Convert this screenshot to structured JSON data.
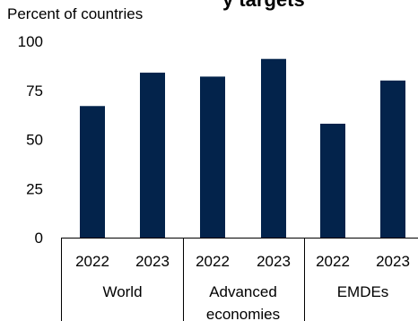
{
  "chart_data": {
    "type": "bar",
    "title_fragment": "y targets",
    "ylabel": "Percent of countries",
    "ylim": [
      0,
      100
    ],
    "yticks": [
      "0",
      "25",
      "50",
      "75",
      "100"
    ],
    "categories": [
      "2022",
      "2023",
      "2022",
      "2023",
      "2022",
      "2023"
    ],
    "groups": [
      {
        "label": "World",
        "range": [
          0,
          1
        ]
      },
      {
        "label": "Advanced economies",
        "range": [
          2,
          3
        ]
      },
      {
        "label": "EMDEs",
        "range": [
          4,
          5
        ]
      }
    ],
    "series": [
      {
        "values": [
          67,
          84,
          82,
          91,
          58,
          80
        ]
      }
    ],
    "colors": {
      "bar": "#03234b"
    },
    "grid": false
  }
}
